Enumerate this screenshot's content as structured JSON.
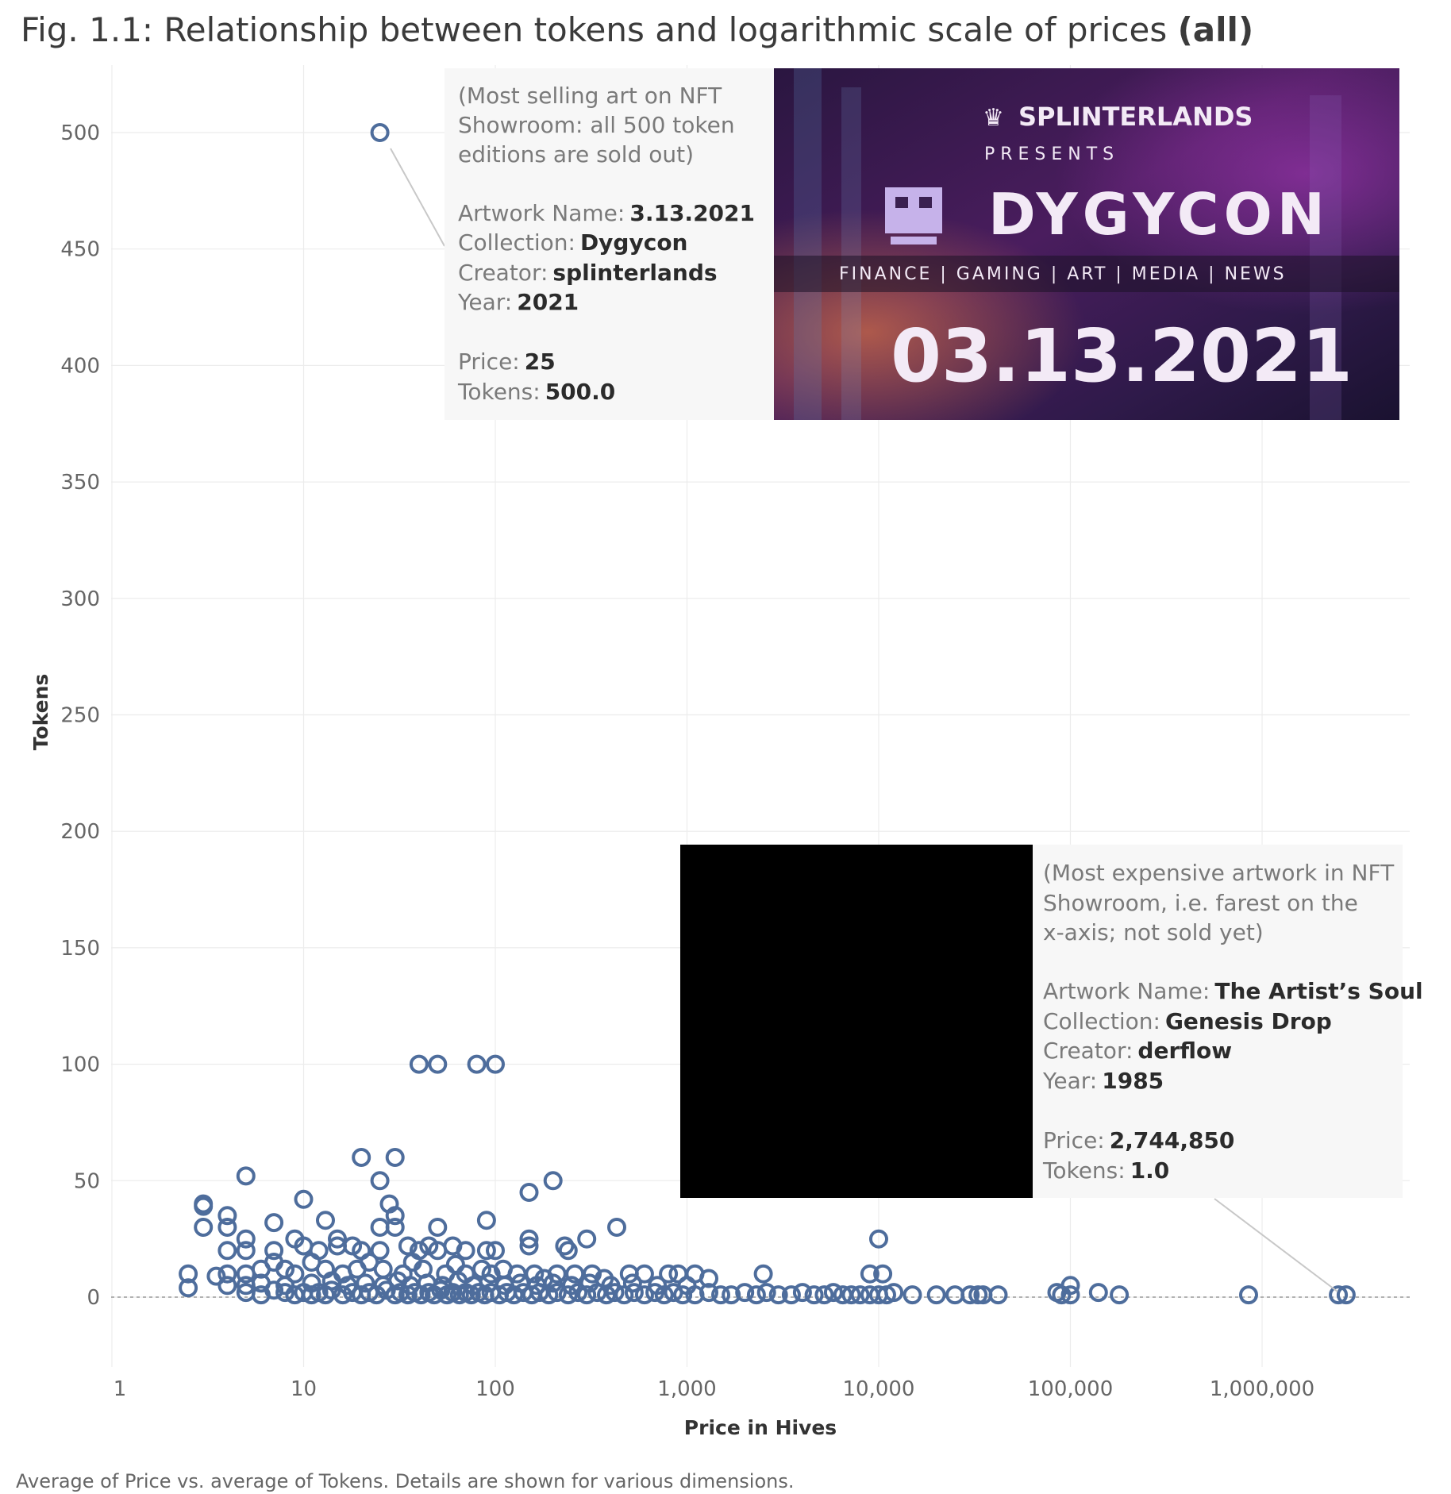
{
  "title": {
    "main": "Fig. 1.1: Relationship between tokens and logarithmic scale of prices",
    "bold": "(all)"
  },
  "caption": "Average of Price vs. average of Tokens. Details are shown for various dimensions.",
  "colors": {
    "mark": "#4e6d9c",
    "grid": "#ececec",
    "annotation_bg": "#f7f7f7"
  },
  "annotations": [
    {
      "id": "most-selling",
      "intro": [
        "(Most selling art on NFT",
        "Showroom: all 500 token",
        "editions are sold out)"
      ],
      "artwork_label": "Artwork Name:",
      "artwork": "3.13.2021",
      "collection_label": "Collection:",
      "collection": "Dygycon",
      "creator_label": "Creator:",
      "creator": "splinterlands",
      "year_label": "Year:",
      "year": "2021",
      "price_label": "Price:",
      "price": "25",
      "tokens_label": "Tokens:",
      "tokens": "500.0",
      "point": {
        "x": 25,
        "y": 500
      }
    },
    {
      "id": "most-expensive",
      "intro": [
        "(Most expensive artwork in NFT",
        "Showroom, i.e. farest on the",
        "x-axis; not sold yet)"
      ],
      "artwork_label": "Artwork Name:",
      "artwork": "The Artist’s Soul",
      "collection_label": "Collection:",
      "collection": "Genesis Drop",
      "creator_label": "Creator:",
      "creator": "derflow",
      "year_label": "Year:",
      "year": "1985",
      "price_label": "Price:",
      "price": "2,744,850",
      "tokens_label": "Tokens:",
      "tokens": "1.0",
      "point": {
        "x": 2744850,
        "y": 1
      }
    }
  ],
  "banner": {
    "brand": "SPLINTERLANDS",
    "presents": "P R E S E N T S",
    "name": "DYGYCON",
    "tags": "FINANCE  |  GAMING  |  ART  |  MEDIA  |  NEWS",
    "date": "03.13.2021"
  },
  "chart_data": {
    "type": "scatter",
    "xlabel": "Price in Hives",
    "ylabel": "Tokens",
    "x_scale": "log",
    "xlim": [
      1,
      5000000
    ],
    "ylim": [
      -28,
      528
    ],
    "x_ticks": [
      1,
      10,
      100,
      1000,
      10000,
      100000,
      1000000
    ],
    "x_tick_labels": [
      "1",
      "10",
      "100",
      "1,000",
      "10,000",
      "100,000",
      "1,000,000"
    ],
    "y_ticks": [
      0,
      50,
      100,
      150,
      200,
      250,
      300,
      350,
      400,
      450,
      500
    ],
    "y_tick_labels": [
      "0",
      "50",
      "100",
      "150",
      "200",
      "250",
      "300",
      "350",
      "400",
      "450",
      "500"
    ],
    "grid": true,
    "points": [
      [
        25,
        500
      ],
      [
        40,
        100
      ],
      [
        50,
        100
      ],
      [
        80,
        100
      ],
      [
        100,
        100
      ],
      [
        5,
        52
      ],
      [
        20,
        60
      ],
      [
        30,
        60
      ],
      [
        25,
        50
      ],
      [
        200,
        50
      ],
      [
        150,
        45
      ],
      [
        10,
        42
      ],
      [
        3,
        40
      ],
      [
        3,
        39
      ],
      [
        4,
        35
      ],
      [
        7,
        32
      ],
      [
        13,
        33
      ],
      [
        30,
        35
      ],
      [
        28,
        40
      ],
      [
        90,
        33
      ],
      [
        3,
        30
      ],
      [
        4,
        30
      ],
      [
        25,
        30
      ],
      [
        30,
        30
      ],
      [
        50,
        30
      ],
      [
        430,
        30
      ],
      [
        300,
        25
      ],
      [
        10000,
        25
      ],
      [
        5,
        25
      ],
      [
        9,
        25
      ],
      [
        10,
        22
      ],
      [
        15,
        25
      ],
      [
        15,
        22
      ],
      [
        18,
        22
      ],
      [
        20,
        20
      ],
      [
        35,
        22
      ],
      [
        40,
        20
      ],
      [
        45,
        22
      ],
      [
        50,
        20
      ],
      [
        60,
        22
      ],
      [
        70,
        20
      ],
      [
        90,
        20
      ],
      [
        100,
        20
      ],
      [
        150,
        25
      ],
      [
        150,
        22
      ],
      [
        230,
        22
      ],
      [
        240,
        20
      ],
      [
        4,
        20
      ],
      [
        5,
        20
      ],
      [
        7,
        20
      ],
      [
        12,
        20
      ],
      [
        25,
        20
      ],
      [
        2.5,
        10
      ],
      [
        2.5,
        4
      ],
      [
        3.5,
        9
      ],
      [
        4,
        10
      ],
      [
        4,
        5
      ],
      [
        5,
        10
      ],
      [
        6,
        12
      ],
      [
        7,
        15
      ],
      [
        8,
        12
      ],
      [
        9,
        10
      ],
      [
        11,
        15
      ],
      [
        13,
        12
      ],
      [
        16,
        10
      ],
      [
        19,
        12
      ],
      [
        22,
        15
      ],
      [
        26,
        12
      ],
      [
        33,
        10
      ],
      [
        37,
        15
      ],
      [
        42,
        12
      ],
      [
        55,
        10
      ],
      [
        62,
        14
      ],
      [
        70,
        10
      ],
      [
        85,
        12
      ],
      [
        95,
        10
      ],
      [
        110,
        12
      ],
      [
        130,
        10
      ],
      [
        160,
        10
      ],
      [
        180,
        8
      ],
      [
        210,
        10
      ],
      [
        260,
        10
      ],
      [
        320,
        10
      ],
      [
        370,
        8
      ],
      [
        500,
        10
      ],
      [
        600,
        10
      ],
      [
        800,
        10
      ],
      [
        900,
        10
      ],
      [
        1100,
        10
      ],
      [
        1300,
        8
      ],
      [
        2500,
        10
      ],
      [
        9000,
        10
      ],
      [
        10500,
        10
      ],
      [
        5,
        2
      ],
      [
        6,
        1
      ],
      [
        7,
        3
      ],
      [
        8,
        2
      ],
      [
        9,
        1
      ],
      [
        10,
        2
      ],
      [
        11,
        1
      ],
      [
        12,
        2
      ],
      [
        13,
        1
      ],
      [
        14,
        3
      ],
      [
        16,
        1
      ],
      [
        18,
        2
      ],
      [
        20,
        1
      ],
      [
        22,
        2
      ],
      [
        24,
        1
      ],
      [
        27,
        3
      ],
      [
        30,
        1
      ],
      [
        32,
        2
      ],
      [
        35,
        1
      ],
      [
        38,
        2
      ],
      [
        41,
        1
      ],
      [
        45,
        2
      ],
      [
        48,
        1
      ],
      [
        52,
        3
      ],
      [
        56,
        1
      ],
      [
        60,
        2
      ],
      [
        65,
        1
      ],
      [
        70,
        2
      ],
      [
        75,
        1
      ],
      [
        82,
        2
      ],
      [
        88,
        1
      ],
      [
        95,
        2
      ],
      [
        105,
        1
      ],
      [
        115,
        2
      ],
      [
        125,
        1
      ],
      [
        140,
        2
      ],
      [
        155,
        1
      ],
      [
        170,
        2
      ],
      [
        190,
        1
      ],
      [
        210,
        2
      ],
      [
        240,
        1
      ],
      [
        270,
        2
      ],
      [
        300,
        1
      ],
      [
        340,
        2
      ],
      [
        380,
        1
      ],
      [
        420,
        2
      ],
      [
        470,
        1
      ],
      [
        530,
        2
      ],
      [
        600,
        1
      ],
      [
        680,
        2
      ],
      [
        760,
        1
      ],
      [
        850,
        2
      ],
      [
        950,
        1
      ],
      [
        1100,
        1
      ],
      [
        1300,
        2
      ],
      [
        1500,
        1
      ],
      [
        1700,
        1
      ],
      [
        2000,
        2
      ],
      [
        2300,
        1
      ],
      [
        2600,
        2
      ],
      [
        3000,
        1
      ],
      [
        3500,
        1
      ],
      [
        4000,
        2
      ],
      [
        4600,
        1
      ],
      [
        5200,
        1
      ],
      [
        5800,
        2
      ],
      [
        6500,
        1
      ],
      [
        7200,
        1
      ],
      [
        8000,
        1
      ],
      [
        9000,
        1
      ],
      [
        10000,
        1
      ],
      [
        11000,
        1
      ],
      [
        12000,
        2
      ],
      [
        15000,
        1
      ],
      [
        20000,
        1
      ],
      [
        25000,
        1
      ],
      [
        30000,
        1
      ],
      [
        33000,
        1
      ],
      [
        35000,
        1
      ],
      [
        42000,
        1
      ],
      [
        85000,
        2
      ],
      [
        90000,
        1
      ],
      [
        100000,
        1
      ],
      [
        100000,
        5
      ],
      [
        140000,
        2
      ],
      [
        180000,
        1
      ],
      [
        850000,
        1
      ],
      [
        2500000,
        1
      ],
      [
        2744850,
        1
      ],
      [
        5,
        5
      ],
      [
        6,
        6
      ],
      [
        8,
        5
      ],
      [
        11,
        6
      ],
      [
        14,
        7
      ],
      [
        17,
        5
      ],
      [
        21,
        6
      ],
      [
        26,
        5
      ],
      [
        31,
        7
      ],
      [
        36,
        5
      ],
      [
        44,
        6
      ],
      [
        53,
        5
      ],
      [
        64,
        7
      ],
      [
        77,
        5
      ],
      [
        92,
        6
      ],
      [
        112,
        5
      ],
      [
        135,
        6
      ],
      [
        165,
        5
      ],
      [
        200,
        6
      ],
      [
        250,
        5
      ],
      [
        310,
        6
      ],
      [
        400,
        5
      ],
      [
        520,
        6
      ],
      [
        700,
        5
      ],
      [
        1000,
        5
      ]
    ]
  }
}
